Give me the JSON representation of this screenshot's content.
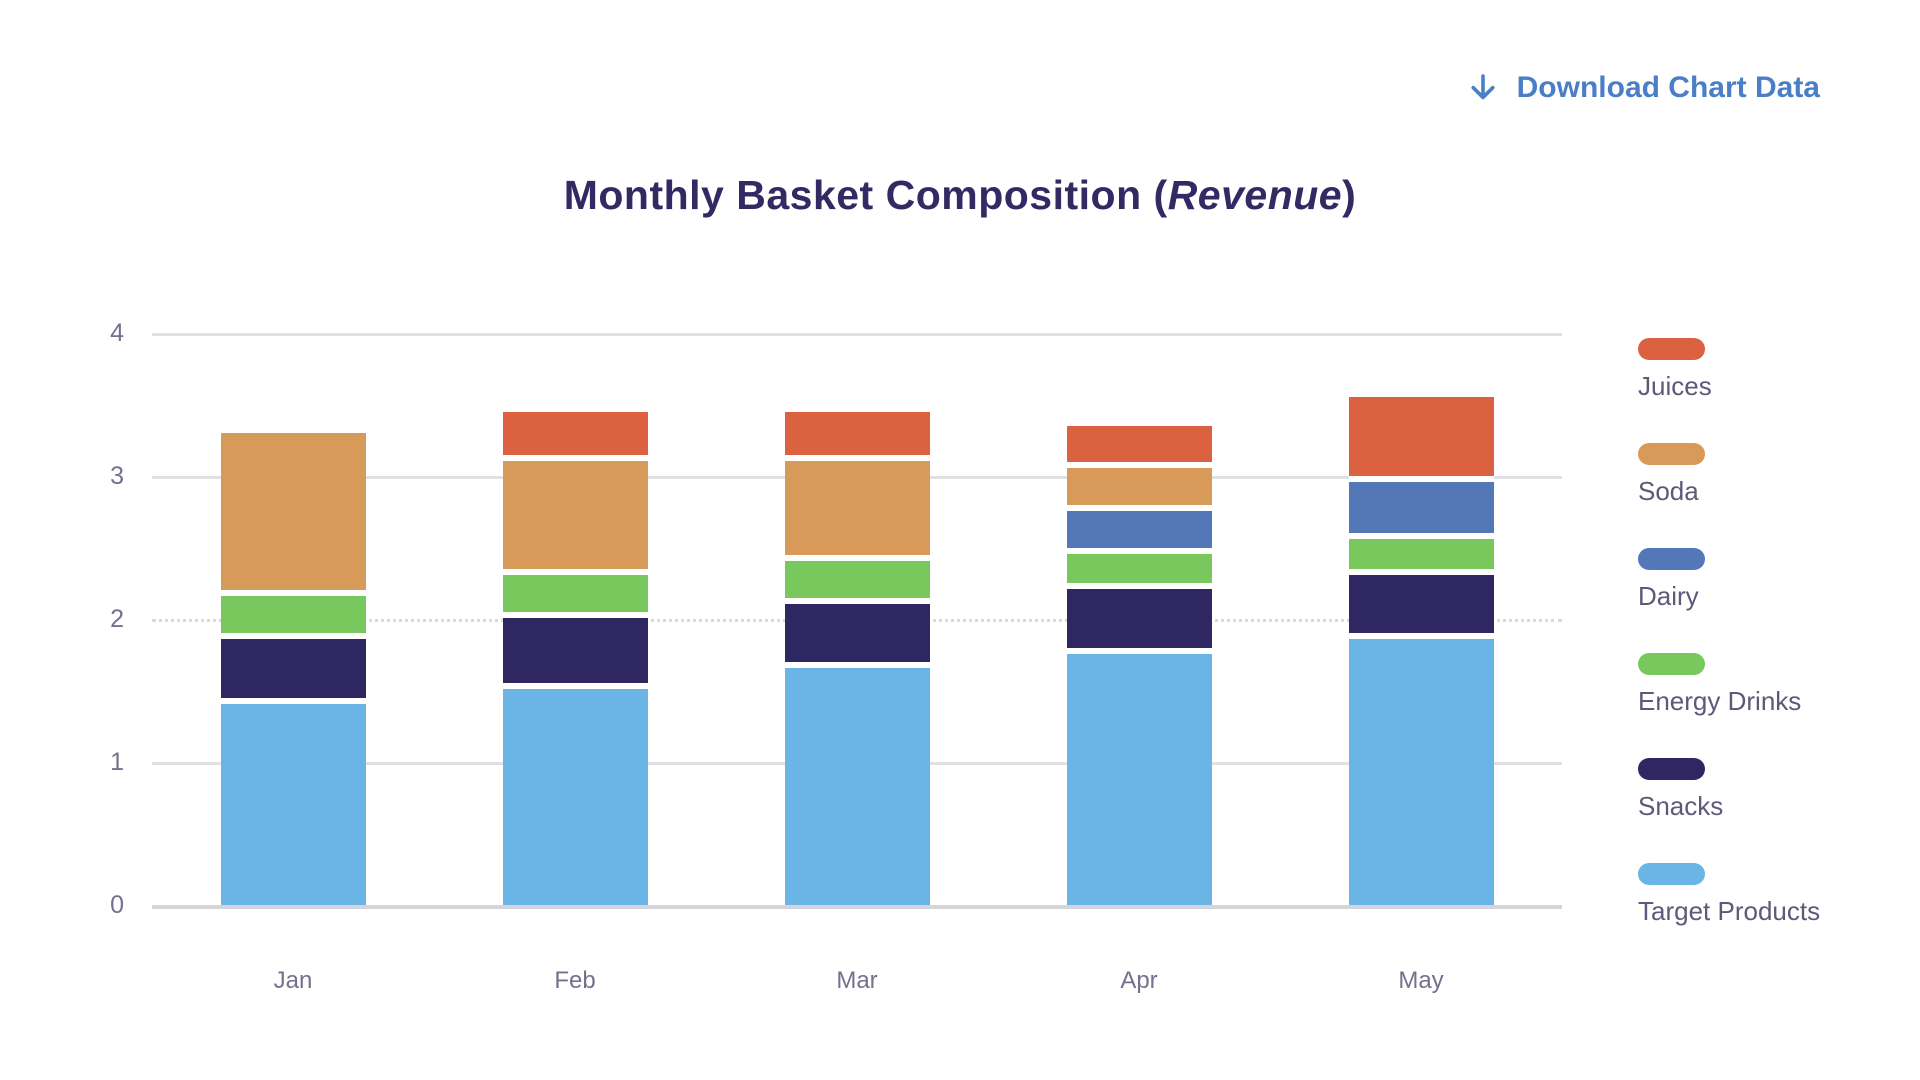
{
  "download": {
    "label": "Download Chart Data",
    "icon": "arrow-down-icon"
  },
  "title": {
    "prefix": "Monthly Basket Composition (",
    "italic": "Revenue",
    "suffix": ")"
  },
  "colors": {
    "link_accent": "#4a7ec6",
    "title_text": "#322b63",
    "axis_text": "#73718d",
    "legend_text": "#5d5979",
    "grid_line": "#e0e0e5"
  },
  "chart_data": {
    "type": "bar",
    "stacked": true,
    "title": "Monthly Basket Composition (Revenue)",
    "xlabel": "",
    "ylabel": "",
    "categories": [
      "Jan",
      "Feb",
      "Mar",
      "Apr",
      "May"
    ],
    "series": [
      {
        "name": "Target Products",
        "color": "#6ab5e6",
        "values": [
          1.45,
          1.55,
          1.7,
          1.8,
          1.9
        ]
      },
      {
        "name": "Snacks",
        "color": "#2f2762",
        "values": [
          0.45,
          0.5,
          0.45,
          0.45,
          0.45
        ]
      },
      {
        "name": "Energy Drinks",
        "color": "#78c85e",
        "values": [
          0.3,
          0.3,
          0.3,
          0.25,
          0.25
        ]
      },
      {
        "name": "Dairy",
        "color": "#5377b7",
        "values": [
          0.0,
          0.0,
          0.0,
          0.3,
          0.4
        ]
      },
      {
        "name": "Soda",
        "color": "#d89a59",
        "values": [
          1.1,
          0.8,
          0.7,
          0.3,
          0.0
        ]
      },
      {
        "name": "Juices",
        "color": "#dc6140",
        "values": [
          0.0,
          0.3,
          0.3,
          0.25,
          0.55
        ]
      }
    ],
    "stack_order": "bottom_to_top",
    "totals": [
      3.3,
      3.45,
      3.45,
      3.35,
      3.55
    ],
    "ylim": [
      0,
      4
    ],
    "yticks": [
      0,
      1,
      2,
      3,
      4
    ],
    "grid": {
      "horizontal": true,
      "dotted_tick": 2
    },
    "legend_position": "right",
    "legend_order_top_to_bottom": [
      "Juices",
      "Soda",
      "Dairy",
      "Energy Drinks",
      "Snacks",
      "Target Products"
    ]
  }
}
